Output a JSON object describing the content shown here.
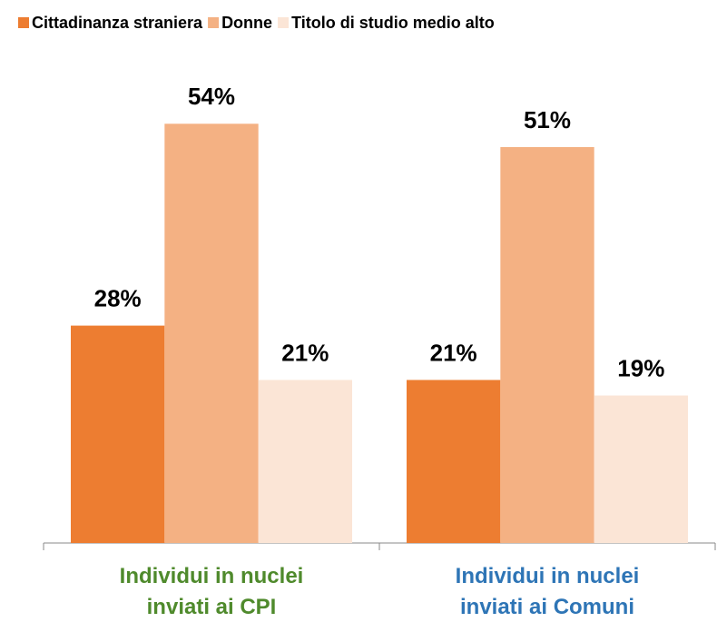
{
  "chart_data": {
    "type": "bar",
    "categories": [
      "Individui in nuclei\ninviati ai CPI",
      "Individui in nuclei\ninviati ai Comuni"
    ],
    "category_label_colors": [
      "#4f8a2c",
      "#2e75b6"
    ],
    "series": [
      {
        "name": "Cittadinanza straniera",
        "color": "#ed7d31",
        "values": [
          28,
          21
        ],
        "value_labels": [
          "28%",
          "21%"
        ]
      },
      {
        "name": "Donne",
        "color": "#f4b183",
        "values": [
          54,
          51
        ],
        "value_labels": [
          "54%",
          "51%"
        ]
      },
      {
        "name": "Titolo di studio medio alto",
        "color": "#fbe5d6",
        "values": [
          21,
          19
        ],
        "value_labels": [
          "21%",
          "19%"
        ]
      }
    ],
    "ylim": [
      0,
      60
    ],
    "legend": "top"
  }
}
